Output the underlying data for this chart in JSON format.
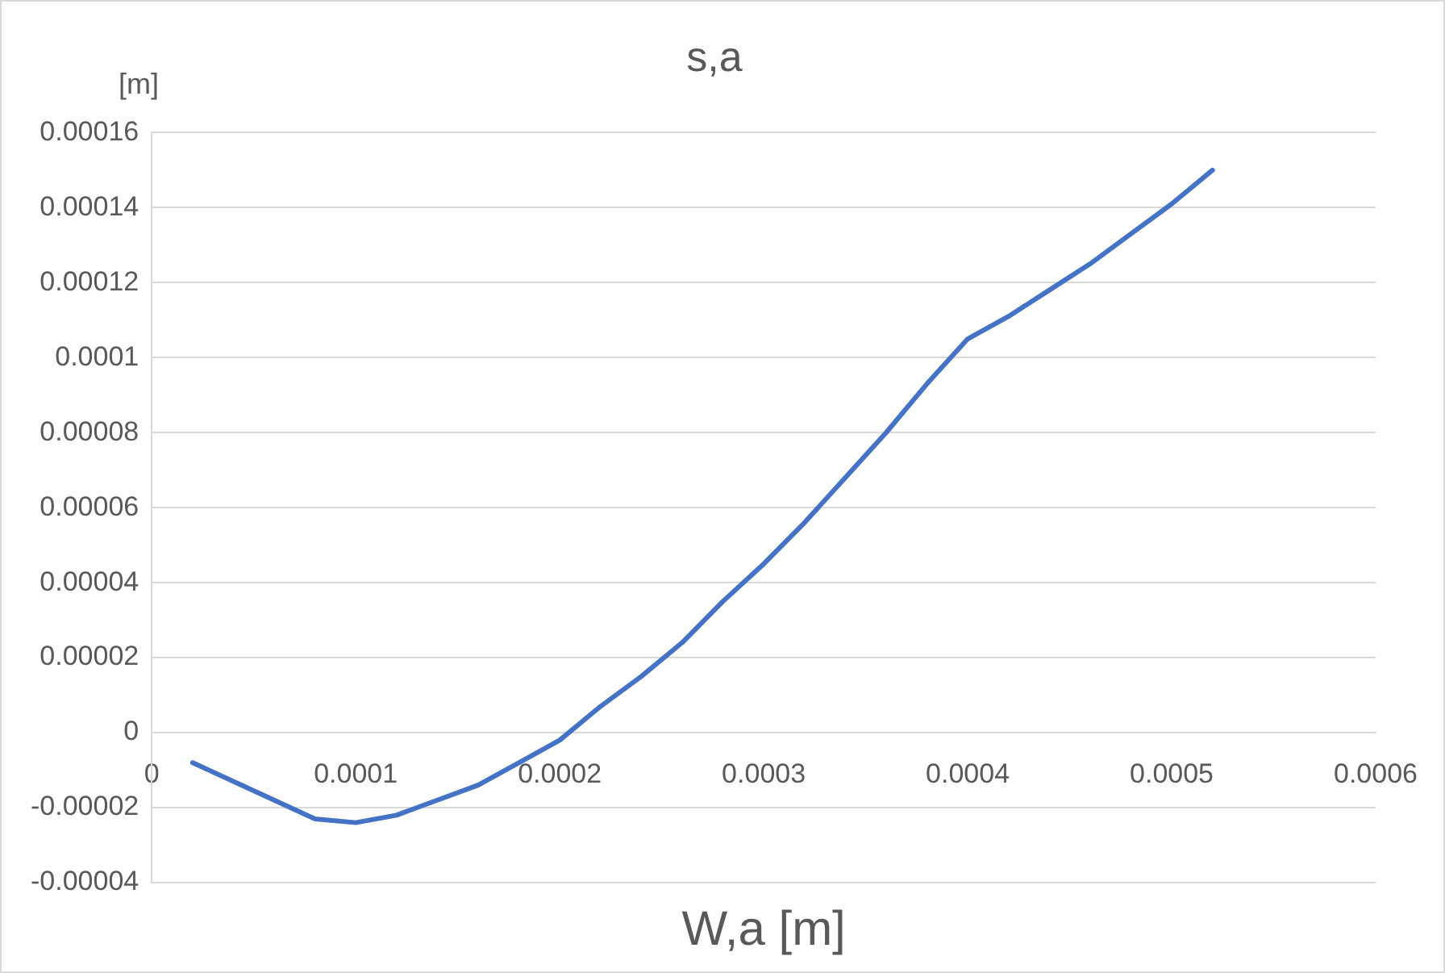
{
  "chart_data": {
    "type": "line",
    "title": "s,a",
    "xlabel": "W,a [m]",
    "ylabel": "[m]",
    "x": [
      2e-05,
      4e-05,
      6e-05,
      8e-05,
      0.0001,
      0.00012,
      0.00014,
      0.00016,
      0.00018,
      0.0002,
      0.00022,
      0.00024,
      0.00026,
      0.00028,
      0.0003,
      0.00032,
      0.00034,
      0.00036,
      0.00038,
      0.0004,
      0.00042,
      0.00044,
      0.00046,
      0.00048,
      0.0005,
      0.00052
    ],
    "series": [
      {
        "color": "#4472c4",
        "values": [
          -8e-06,
          -1.3e-05,
          -1.8e-05,
          -2.3e-05,
          -2.4e-05,
          -2.2e-05,
          -1.8e-05,
          -1.4e-05,
          -8e-06,
          -2e-06,
          7e-06,
          1.5e-05,
          2.4e-05,
          3.5e-05,
          4.5e-05,
          5.6e-05,
          6.8e-05,
          8e-05,
          9.3e-05,
          0.000105,
          0.000111,
          0.000118,
          0.000125,
          0.000133,
          0.000141,
          0.00015
        ]
      }
    ],
    "xlim": [
      0,
      0.0006
    ],
    "xticks": [
      0,
      0.0001,
      0.0002,
      0.0003,
      0.0004,
      0.0005,
      0.0006
    ],
    "ylim": [
      -4e-05,
      0.00016
    ],
    "yticks": [
      {
        "value": -4e-05,
        "label": "-0.00004"
      },
      {
        "value": -2e-05,
        "label": "-0.00002"
      },
      0,
      {
        "value": 2e-05,
        "label": "0.00002"
      },
      {
        "value": 4e-05,
        "label": "0.00004"
      },
      {
        "value": 6e-05,
        "label": "0.00006"
      },
      {
        "value": 8e-05,
        "label": "0.00008"
      },
      0.0001,
      0.00012,
      0.00014,
      0.00016
    ],
    "grid": "y",
    "legend": false,
    "marker": "none",
    "line_style": "solid"
  }
}
